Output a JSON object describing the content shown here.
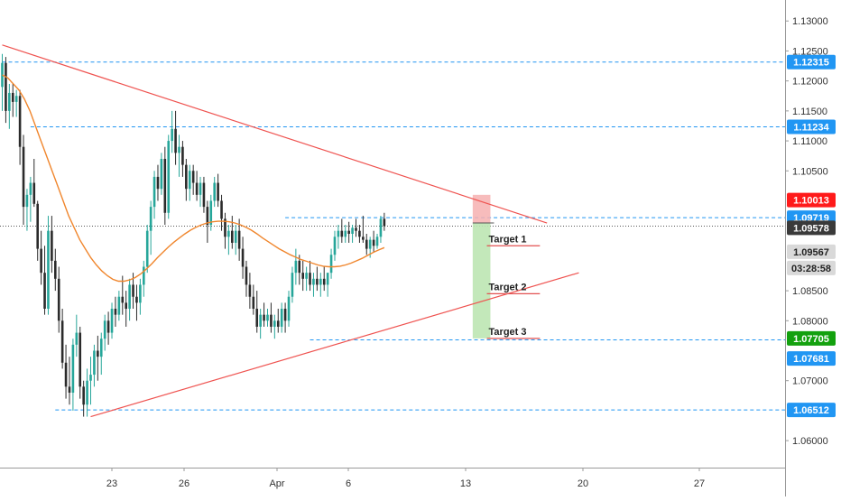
{
  "chart_data": {
    "type": "candlestick",
    "instrument": "",
    "x_tick_labels": [
      "23",
      "26",
      "Apr",
      "6",
      "13",
      "20",
      "27"
    ],
    "y_ticks": [
      1.13,
      1.125,
      1.12,
      1.115,
      1.11,
      1.105,
      1.085,
      1.08,
      1.07,
      1.06
    ],
    "y_tick_labels": [
      "1.13000",
      "1.12500",
      "1.12000",
      "1.11500",
      "1.11000",
      "1.10500",
      "1.08500",
      "1.08000",
      "1.07000",
      "1.06000"
    ],
    "ylim": [
      1.0555,
      1.1335
    ],
    "colors": {
      "bull": "#26a69a",
      "bear": "#2b2b2b",
      "ma": "#f0862d",
      "trend": "#ef5350",
      "level": "#2196f3",
      "target": "#e25050",
      "stop_zone": "#f6b0b0",
      "profit_zone": "#bde6b3"
    },
    "candles": [
      [
        1.119,
        1.1245,
        1.115,
        1.123
      ],
      [
        1.123,
        1.124,
        1.113,
        1.115
      ],
      [
        1.115,
        1.1195,
        1.112,
        1.118
      ],
      [
        1.118,
        1.1195,
        1.114,
        1.1165
      ],
      [
        1.1165,
        1.1185,
        1.114,
        1.1175
      ],
      [
        1.1175,
        1.1185,
        1.106,
        1.109
      ],
      [
        1.109,
        1.111,
        1.096,
        1.099
      ],
      [
        1.099,
        1.102,
        1.095,
        1.101
      ],
      [
        1.101,
        1.104,
        1.0965,
        1.103
      ],
      [
        1.103,
        1.107,
        1.099,
        1.0995
      ],
      [
        1.0995,
        1.1,
        1.09,
        1.092
      ],
      [
        1.092,
        1.095,
        1.086,
        1.088
      ],
      [
        1.088,
        1.0925,
        1.081,
        1.082
      ],
      [
        1.082,
        1.0975,
        1.081,
        1.095
      ],
      [
        1.095,
        1.0975,
        1.088,
        1.09
      ],
      [
        1.09,
        1.092,
        1.085,
        1.087
      ],
      [
        1.087,
        1.089,
        1.078,
        1.08
      ],
      [
        1.08,
        1.082,
        1.072,
        1.073
      ],
      [
        1.073,
        1.076,
        1.067,
        1.069
      ],
      [
        1.069,
        1.074,
        1.066,
        1.068
      ],
      [
        1.068,
        1.077,
        1.065,
        1.076
      ],
      [
        1.076,
        1.081,
        1.074,
        1.078
      ],
      [
        1.078,
        1.079,
        1.067,
        1.069
      ],
      [
        1.069,
        1.07,
        1.064,
        1.066
      ],
      [
        1.066,
        1.072,
        1.064,
        1.07
      ],
      [
        1.07,
        1.074,
        1.066,
        1.071
      ],
      [
        1.071,
        1.076,
        1.069,
        1.075
      ],
      [
        1.075,
        1.0775,
        1.07,
        1.074
      ],
      [
        1.074,
        1.078,
        1.071,
        1.077
      ],
      [
        1.077,
        1.081,
        1.075,
        1.08
      ],
      [
        1.08,
        1.0815,
        1.076,
        1.078
      ],
      [
        1.078,
        1.083,
        1.077,
        1.082
      ],
      [
        1.082,
        1.084,
        1.079,
        1.081
      ],
      [
        1.081,
        1.085,
        1.08,
        1.084
      ],
      [
        1.084,
        1.0875,
        1.081,
        1.083
      ],
      [
        1.083,
        1.085,
        1.079,
        1.082
      ],
      [
        1.082,
        1.087,
        1.08,
        1.086
      ],
      [
        1.086,
        1.088,
        1.082,
        1.084
      ],
      [
        1.084,
        1.086,
        1.08,
        1.083
      ],
      [
        1.083,
        1.087,
        1.081,
        1.086
      ],
      [
        1.086,
        1.09,
        1.084,
        1.089
      ],
      [
        1.089,
        1.096,
        1.088,
        1.095
      ],
      [
        1.095,
        1.1,
        1.091,
        1.099
      ],
      [
        1.099,
        1.105,
        1.097,
        1.104
      ],
      [
        1.104,
        1.106,
        1.1,
        1.102
      ],
      [
        1.102,
        1.108,
        1.101,
        1.107
      ],
      [
        1.107,
        1.109,
        1.096,
        1.098
      ],
      [
        1.098,
        1.111,
        1.097,
        1.11
      ],
      [
        1.11,
        1.115,
        1.108,
        1.112
      ],
      [
        1.112,
        1.115,
        1.106,
        1.108
      ],
      [
        1.108,
        1.111,
        1.104,
        1.109
      ],
      [
        1.109,
        1.11,
        1.104,
        1.106
      ],
      [
        1.106,
        1.107,
        1.1,
        1.102
      ],
      [
        1.102,
        1.106,
        1.1,
        1.105
      ],
      [
        1.105,
        1.106,
        1.101,
        1.103
      ],
      [
        1.103,
        1.105,
        1.1,
        1.101
      ],
      [
        1.101,
        1.104,
        1.099,
        1.103
      ],
      [
        1.103,
        1.104,
        1.098,
        1.099
      ],
      [
        1.099,
        1.1,
        1.093,
        1.096
      ],
      [
        1.096,
        1.101,
        1.095,
        1.1
      ],
      [
        1.1,
        1.104,
        1.099,
        1.103
      ],
      [
        1.103,
        1.1045,
        1.099,
        1.1
      ],
      [
        1.1,
        1.101,
        1.095,
        1.097
      ],
      [
        1.097,
        1.098,
        1.092,
        1.094
      ],
      [
        1.094,
        1.096,
        1.091,
        1.095
      ],
      [
        1.095,
        1.0975,
        1.092,
        1.093
      ],
      [
        1.093,
        1.096,
        1.091,
        1.095
      ],
      [
        1.095,
        1.097,
        1.09,
        1.092
      ],
      [
        1.092,
        1.094,
        1.087,
        1.089
      ],
      [
        1.089,
        1.09,
        1.084,
        1.086
      ],
      [
        1.086,
        1.088,
        1.082,
        1.084
      ],
      [
        1.084,
        1.086,
        1.081,
        1.082
      ],
      [
        1.082,
        1.085,
        1.078,
        1.079
      ],
      [
        1.079,
        1.082,
        1.077,
        1.081
      ],
      [
        1.081,
        1.083,
        1.079,
        1.08
      ],
      [
        1.08,
        1.082,
        1.079,
        1.081
      ],
      [
        1.081,
        1.083,
        1.078,
        1.079
      ],
      [
        1.079,
        1.081,
        1.077,
        1.08
      ],
      [
        1.08,
        1.082,
        1.078,
        1.079
      ],
      [
        1.079,
        1.083,
        1.078,
        1.082
      ],
      [
        1.082,
        1.083,
        1.078,
        1.08
      ],
      [
        1.08,
        1.085,
        1.079,
        1.084
      ],
      [
        1.084,
        1.089,
        1.083,
        1.088
      ],
      [
        1.088,
        1.092,
        1.086,
        1.09
      ],
      [
        1.09,
        1.091,
        1.086,
        1.088
      ],
      [
        1.088,
        1.09,
        1.085,
        1.087
      ],
      [
        1.087,
        1.089,
        1.085,
        1.088
      ],
      [
        1.088,
        1.09,
        1.085,
        1.086
      ],
      [
        1.086,
        1.088,
        1.084,
        1.087
      ],
      [
        1.087,
        1.089,
        1.085,
        1.086
      ],
      [
        1.086,
        1.088,
        1.084,
        1.087
      ],
      [
        1.087,
        1.089,
        1.085,
        1.086
      ],
      [
        1.086,
        1.088,
        1.084,
        1.088
      ],
      [
        1.088,
        1.092,
        1.087,
        1.091
      ],
      [
        1.091,
        1.095,
        1.09,
        1.094
      ],
      [
        1.094,
        1.096,
        1.092,
        1.095
      ],
      [
        1.095,
        1.097,
        1.093,
        1.094
      ],
      [
        1.094,
        1.096,
        1.093,
        1.095
      ],
      [
        1.095,
        1.0965,
        1.093,
        1.0945
      ],
      [
        1.0945,
        1.096,
        1.093,
        1.0955
      ],
      [
        1.0955,
        1.097,
        1.094,
        1.095
      ],
      [
        1.095,
        1.096,
        1.093,
        1.094
      ],
      [
        1.094,
        1.0975,
        1.093,
        1.0935
      ],
      [
        1.0935,
        1.0945,
        1.091,
        1.092
      ],
      [
        1.092,
        1.094,
        1.0905,
        1.0935
      ],
      [
        1.0935,
        1.095,
        1.0915,
        1.0925
      ],
      [
        1.0925,
        1.0945,
        1.092,
        1.094
      ],
      [
        1.094,
        1.0975,
        1.093,
        1.097
      ],
      [
        1.097,
        1.098,
        1.095,
        1.0958
      ]
    ],
    "ma": [
      1.121,
      1.1205,
      1.1195,
      1.1185,
      1.117,
      1.115,
      1.1125,
      1.11,
      1.1075,
      1.105,
      1.1025,
      1.1,
      1.0975,
      1.0955,
      1.0935,
      1.092,
      1.0905,
      1.0893,
      1.0883,
      1.0875,
      1.0869,
      1.0866,
      1.0866,
      1.0868,
      1.0872,
      1.0878,
      1.0886,
      1.0895,
      1.0905,
      1.0914,
      1.0923,
      1.0931,
      1.0938,
      1.0945,
      1.0951,
      1.0956,
      1.096,
      1.0963,
      1.0965,
      1.0966,
      1.0966,
      1.0965,
      1.0963,
      1.096,
      1.0956,
      1.0951,
      1.0945,
      1.0938,
      1.0932,
      1.0926,
      1.092,
      1.0915,
      1.091,
      1.0906,
      1.0902,
      1.0899,
      1.0896,
      1.0893,
      1.0891,
      1.089,
      1.089,
      1.0891,
      1.0893,
      1.0896,
      1.09,
      1.0904,
      1.0909,
      1.0914,
      1.0918,
      1.0922
    ],
    "trendlines": [
      {
        "name": "upper",
        "points": [
          [
            0,
            1.126
          ],
          [
            154,
            1.0963
          ]
        ]
      },
      {
        "name": "lower",
        "points": [
          [
            25,
            1.064
          ],
          [
            163,
            1.088
          ]
        ]
      }
    ],
    "levels": [
      {
        "price": 1.12315,
        "label": "1.12315",
        "from": 0
      },
      {
        "price": 1.11234,
        "label": "1.11234",
        "from": 8
      },
      {
        "price": 1.09719,
        "label": "1.09719",
        "from": 80
      },
      {
        "price": 1.07681,
        "label": "1.07681",
        "from": 87
      },
      {
        "price": 1.06512,
        "label": "1.06512",
        "from": 15
      }
    ],
    "last_price_line": 1.09578,
    "targets": [
      {
        "label": "Target 1",
        "price": 1.0925,
        "from": 137,
        "to": 152
      },
      {
        "label": "Target 2",
        "price": 1.0845,
        "from": 137,
        "to": 152
      },
      {
        "label": "Target 3",
        "price": 1.07705,
        "from": 137,
        "to": 152
      }
    ],
    "position": {
      "entry": 1.0963,
      "stop": 1.101,
      "target": 1.07705,
      "from": 133,
      "to": 138
    },
    "price_labels": [
      {
        "text": "1.12315",
        "price": 1.12315,
        "bg": "#2196f3",
        "fg": "#ffffff"
      },
      {
        "text": "1.11234",
        "price": 1.11234,
        "bg": "#2196f3",
        "fg": "#ffffff"
      },
      {
        "text": "1.10013",
        "price": 1.10013,
        "bg": "#ff1a1a",
        "fg": "#ffffff"
      },
      {
        "text": "1.09719",
        "price": 1.09719,
        "bg": "#2196f3",
        "fg": "#ffffff"
      },
      {
        "text": "1.09578",
        "price": 1.0955,
        "bg": "#3a3a3a",
        "fg": "#ffffff"
      },
      {
        "text": "1.09567",
        "price": 1.0915,
        "bg": "#d9d9d9",
        "fg": "#222222"
      },
      {
        "text": "03:28:58",
        "price": 1.0888,
        "bg": "#d9d9d9",
        "fg": "#222222"
      },
      {
        "text": "1.07705",
        "price": 1.07705,
        "bg": "#13a10e",
        "fg": "#ffffff"
      },
      {
        "text": "1.07681",
        "price": 1.0737,
        "bg": "#2196f3",
        "fg": "#ffffff"
      },
      {
        "text": "1.06512",
        "price": 1.06512,
        "bg": "#2196f3",
        "fg": "#ffffff"
      }
    ]
  }
}
